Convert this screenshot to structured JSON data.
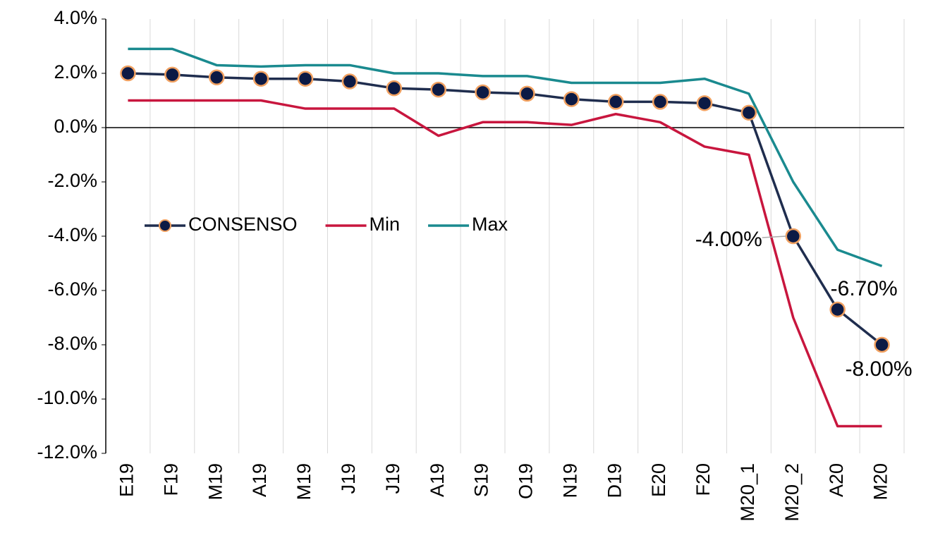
{
  "chart_data": {
    "type": "line",
    "categories": [
      "E19",
      "F19",
      "M19",
      "A19",
      "M19",
      "J19",
      "J19",
      "A19",
      "S19",
      "O19",
      "N19",
      "D19",
      "E20",
      "F20",
      "M20_1",
      "M20_2",
      "A20",
      "M20"
    ],
    "series": [
      {
        "name": "CONSENSO",
        "color": "#1f2d4e",
        "marker": true,
        "values": [
          2.0,
          1.95,
          1.85,
          1.8,
          1.8,
          1.7,
          1.45,
          1.4,
          1.3,
          1.25,
          1.05,
          0.95,
          0.95,
          0.9,
          0.55,
          -4.0,
          -6.7,
          -8.0
        ],
        "value_labels": [
          null,
          null,
          null,
          null,
          null,
          null,
          null,
          null,
          null,
          null,
          null,
          null,
          null,
          null,
          null,
          "-4.00%",
          "-6.70%",
          "-8.00%"
        ]
      },
      {
        "name": "Min",
        "color": "#c8163e",
        "values": [
          1.0,
          1.0,
          1.0,
          1.0,
          0.7,
          0.7,
          0.7,
          -0.3,
          0.2,
          0.2,
          0.1,
          0.5,
          0.2,
          -0.7,
          -1.0,
          -7.0,
          -11.0,
          -11.0
        ]
      },
      {
        "name": "Max",
        "color": "#1a8a8f",
        "values": [
          2.9,
          2.9,
          2.3,
          2.25,
          2.3,
          2.3,
          2.0,
          2.0,
          1.9,
          1.9,
          1.65,
          1.65,
          1.65,
          1.8,
          1.25,
          -2.0,
          -4.5,
          -5.1
        ]
      }
    ],
    "ylim": [
      -12,
      4
    ],
    "yticks": [
      {
        "value": -12,
        "label": "-12.0%"
      },
      {
        "value": -10,
        "label": "-10.0%"
      },
      {
        "value": -8,
        "label": "-8.0%"
      },
      {
        "value": -6,
        "label": "-6.0%"
      },
      {
        "value": -4,
        "label": "-4.0%"
      },
      {
        "value": -2,
        "label": "-2.0%"
      },
      {
        "value": 0,
        "label": "0.0%"
      },
      {
        "value": 2,
        "label": "2.0%"
      },
      {
        "value": 4,
        "label": "4.0%"
      }
    ],
    "grid": false
  }
}
